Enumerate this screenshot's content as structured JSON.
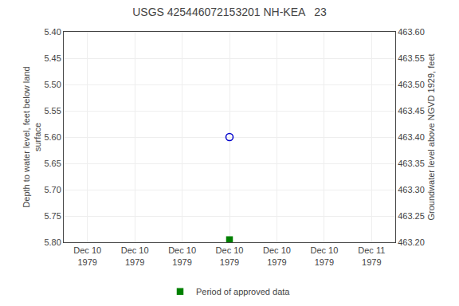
{
  "chart_data": {
    "type": "scatter",
    "title": "USGS 425446072153201 NH-KEA   23",
    "y_label": "Depth to water level, feet below land\nsurface",
    "y2_label": "Groundwater level above NGVD 1929, feet",
    "categories": [
      "Dec 10\n1979",
      "Dec 10\n1979",
      "Dec 10\n1979",
      "Dec 10\n1979",
      "Dec 10\n1979",
      "Dec 10\n1979",
      "Dec 11\n1979"
    ],
    "series": [
      {
        "color": "#0000cc",
        "marker": "circle-open",
        "values": [
          null,
          null,
          null,
          5.6,
          null,
          null,
          null
        ]
      },
      {
        "name": "Period of approved data",
        "color": "#008000",
        "marker": "square",
        "values": [
          null,
          null,
          null,
          5.795,
          null,
          null,
          null
        ]
      }
    ],
    "ylim": [
      5.8,
      5.4
    ],
    "yticks": [
      {
        "value": 5.4,
        "label": "5.40"
      },
      5.45,
      {
        "value": 5.5,
        "label": "5.50"
      },
      5.55,
      {
        "value": 5.6,
        "label": "5.60"
      },
      5.65,
      {
        "value": 5.7,
        "label": "5.70"
      },
      5.75,
      {
        "value": 5.8,
        "label": "5.80"
      }
    ],
    "y2lim": [
      463.2,
      463.6
    ],
    "y2ticks": [
      {
        "value": 463.6,
        "label": "463.60"
      },
      463.55,
      {
        "value": 463.5,
        "label": "463.50"
      },
      463.45,
      {
        "value": 463.4,
        "label": "463.40"
      },
      463.35,
      {
        "value": 463.3,
        "label": "463.30"
      },
      463.25,
      {
        "value": 463.2,
        "label": "463.20"
      }
    ],
    "grid": true,
    "legend": "bottom"
  }
}
